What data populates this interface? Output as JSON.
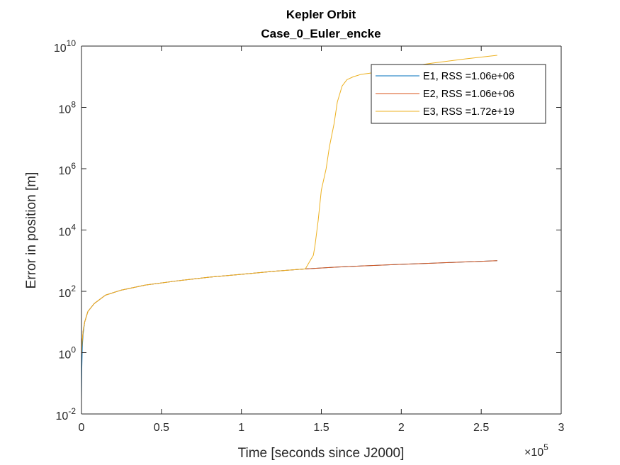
{
  "chart_data": {
    "type": "line",
    "title": "Kepler Orbit",
    "subtitle": "Case_0_Euler_encke",
    "xlabel": "Time [seconds since J2000]",
    "ylabel": "Error in position [m]",
    "x_scale_exponent": "5",
    "x_scale_base": "×10",
    "xlim": [
      0,
      300000
    ],
    "ylim": [
      0.01,
      10000000000
    ],
    "yscale": "log",
    "grid": false,
    "legend_position": "top-right",
    "x_ticks": [
      {
        "value": 0,
        "label": "0"
      },
      {
        "value": 50000,
        "label": "0.5"
      },
      {
        "value": 100000,
        "label": "1"
      },
      {
        "value": 150000,
        "label": "1.5"
      },
      {
        "value": 200000,
        "label": "2"
      },
      {
        "value": 250000,
        "label": "2.5"
      },
      {
        "value": 300000,
        "label": "3"
      }
    ],
    "y_ticks": [
      {
        "value": 0.01,
        "base": "10",
        "exp": "-2"
      },
      {
        "value": 1,
        "base": "10",
        "exp": "0"
      },
      {
        "value": 100,
        "base": "10",
        "exp": "2"
      },
      {
        "value": 10000,
        "base": "10",
        "exp": "4"
      },
      {
        "value": 1000000,
        "base": "10",
        "exp": "6"
      },
      {
        "value": 100000000,
        "base": "10",
        "exp": "8"
      },
      {
        "value": 10000000000,
        "base": "10",
        "exp": "10"
      }
    ],
    "series": [
      {
        "name": "E1, RSS =1.06e+06",
        "color": "#0072BD",
        "x": [
          0,
          200,
          500,
          1000,
          2000,
          4000,
          8000,
          15000,
          25000,
          40000,
          60000,
          80000,
          100000,
          120000,
          140000,
          160000,
          180000,
          200000,
          220000,
          240000,
          260000
        ],
        "y": [
          0.03,
          0.3,
          1.5,
          4,
          10,
          22,
          40,
          75,
          110,
          160,
          220,
          290,
          360,
          450,
          540,
          620,
          690,
          760,
          830,
          910,
          1000
        ]
      },
      {
        "name": "E2, RSS =1.06e+06",
        "color": "#D95319",
        "x": [
          0,
          200,
          500,
          1000,
          2000,
          4000,
          8000,
          15000,
          25000,
          40000,
          60000,
          80000,
          100000,
          120000,
          140000,
          160000,
          180000,
          200000,
          220000,
          240000,
          260000
        ],
        "y": [
          0.8,
          1.5,
          2.5,
          5,
          10,
          22,
          40,
          75,
          110,
          160,
          220,
          290,
          360,
          450,
          540,
          620,
          690,
          760,
          830,
          910,
          1000
        ]
      },
      {
        "name": "E3, RSS =1.72e+19",
        "color": "#EDB120",
        "x": [
          0,
          200,
          500,
          1000,
          2000,
          4000,
          8000,
          15000,
          25000,
          40000,
          60000,
          80000,
          100000,
          120000,
          140000,
          143000,
          145000,
          146000,
          148000,
          150000,
          153000,
          155000,
          158000,
          160000,
          163000,
          166000,
          170000,
          175000,
          180000,
          190000,
          200000,
          220000,
          240000,
          260000
        ],
        "y": [
          0.8,
          1.5,
          2.5,
          5,
          10,
          22,
          40,
          75,
          110,
          160,
          220,
          290,
          360,
          450,
          540,
          1000,
          1500,
          3000,
          20000,
          200000,
          1000000,
          5000000,
          30000000,
          150000000,
          500000000,
          800000000,
          1000000000,
          1200000000,
          1300000000,
          1600000000,
          2000000000,
          2800000000,
          3800000000,
          5000000000
        ]
      }
    ]
  }
}
